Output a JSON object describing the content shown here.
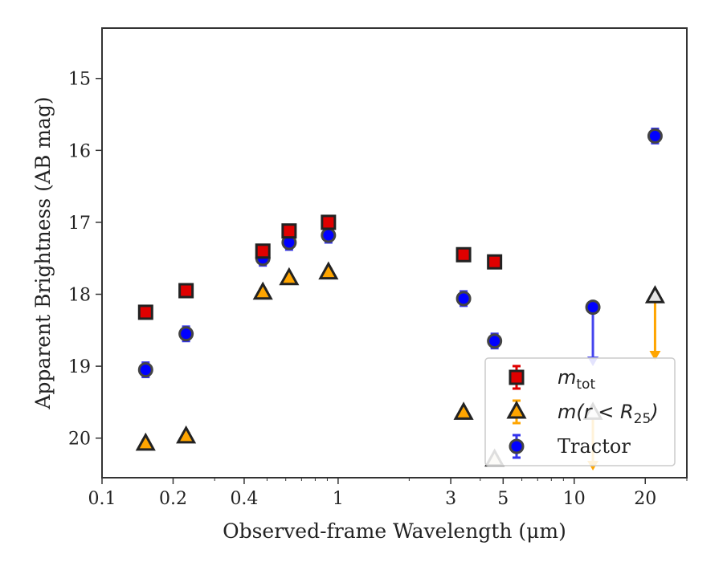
{
  "chart_data": {
    "type": "scatter",
    "xlabel": "Observed-frame Wavelength (μm)",
    "ylabel": "Apparent Brightness (AB mag)",
    "x_scale": "log",
    "xlim": [
      0.1,
      30
    ],
    "ylim": [
      20.55,
      14.3
    ],
    "y_inverted": true,
    "x_ticks": [
      {
        "value": 0.1,
        "label": "0.1"
      },
      {
        "value": 0.2,
        "label": "0.2"
      },
      {
        "value": 0.4,
        "label": "0.4"
      },
      {
        "value": 1,
        "label": "1"
      },
      {
        "value": 3,
        "label": "3"
      },
      {
        "value": 5,
        "label": "5"
      },
      {
        "value": 10,
        "label": "10"
      },
      {
        "value": 20,
        "label": "20"
      }
    ],
    "y_ticks": [
      {
        "value": 15,
        "label": "15"
      },
      {
        "value": 16,
        "label": "16"
      },
      {
        "value": 17,
        "label": "17"
      },
      {
        "value": 18,
        "label": "18"
      },
      {
        "value": 19,
        "label": "19"
      },
      {
        "value": 20,
        "label": "20"
      }
    ],
    "grid": false,
    "legend_position": "lower-right",
    "series": [
      {
        "key": "mtot",
        "legend_main": "m",
        "legend_sub": "tot",
        "legend_tail": "",
        "marker": "square",
        "color": "#e00000",
        "errcolor": "#e00000",
        "points": [
          {
            "x": 0.153,
            "y": 18.25,
            "err": 0.08
          },
          {
            "x": 0.227,
            "y": 17.95,
            "err": 0.08
          },
          {
            "x": 0.48,
            "y": 17.4,
            "err": 0.08
          },
          {
            "x": 0.62,
            "y": 17.12,
            "err": 0.08
          },
          {
            "x": 0.91,
            "y": 17.0,
            "err": 0.08
          },
          {
            "x": 3.4,
            "y": 17.45,
            "err": 0.07
          },
          {
            "x": 4.6,
            "y": 17.55,
            "err": 0.07
          }
        ]
      },
      {
        "key": "mr25",
        "legend_main": "m(r < R",
        "legend_sub": "25",
        "legend_tail": ")",
        "marker": "triangle",
        "color": "#ffa500",
        "errcolor": "#ffa500",
        "points": [
          {
            "x": 0.153,
            "y": 20.08,
            "err": 0.05
          },
          {
            "x": 0.227,
            "y": 19.98,
            "err": 0.05
          },
          {
            "x": 0.48,
            "y": 17.98,
            "err": 0.05
          },
          {
            "x": 0.62,
            "y": 17.78,
            "err": 0.05
          },
          {
            "x": 0.91,
            "y": 17.7,
            "err": 0.05
          },
          {
            "x": 3.4,
            "y": 19.65,
            "err": 0.05
          },
          {
            "x": 4.6,
            "y": 20.3,
            "err": 0.05
          },
          {
            "x": 12.0,
            "y": 19.65,
            "err": 0,
            "upper_limit": true,
            "arrow_to": 20.45
          },
          {
            "x": 22.0,
            "y": 18.03,
            "err": 0,
            "upper_limit": true,
            "arrow_to": 18.92
          }
        ]
      },
      {
        "key": "tractor",
        "legend_main": "Tractor",
        "legend_sub": "",
        "legend_tail": "",
        "marker": "circle",
        "color": "#0000ff",
        "errcolor": "#3333ee",
        "points": [
          {
            "x": 0.153,
            "y": 19.05,
            "err": 0.1
          },
          {
            "x": 0.227,
            "y": 18.55,
            "err": 0.1
          },
          {
            "x": 0.48,
            "y": 17.5,
            "err": 0.1
          },
          {
            "x": 0.62,
            "y": 17.28,
            "err": 0.1
          },
          {
            "x": 0.91,
            "y": 17.18,
            "err": 0.1
          },
          {
            "x": 3.4,
            "y": 18.06,
            "err": 0.1
          },
          {
            "x": 4.6,
            "y": 18.65,
            "err": 0.1
          },
          {
            "x": 12.0,
            "y": 18.18,
            "err": 0,
            "upper_limit": true,
            "arrow_to": 19.0
          },
          {
            "x": 22.0,
            "y": 15.8,
            "err": 0.1
          }
        ]
      }
    ]
  }
}
